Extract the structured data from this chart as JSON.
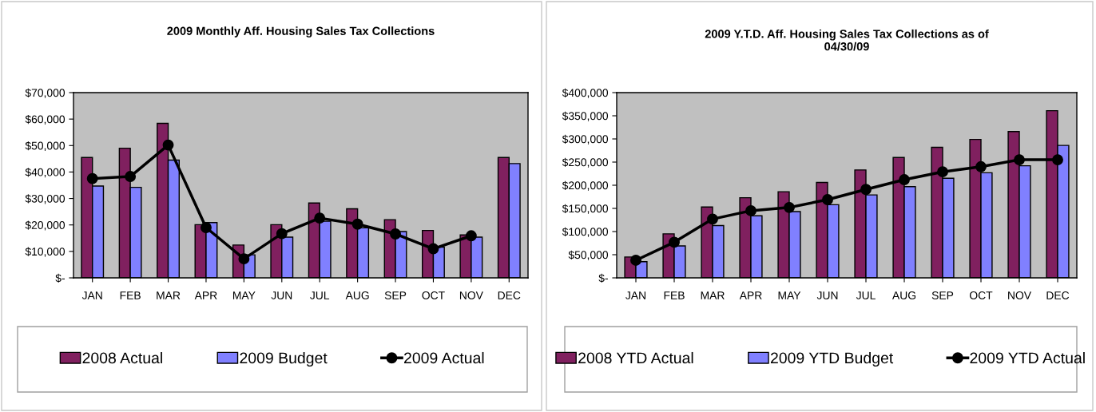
{
  "chart_data": [
    {
      "type": "bar",
      "title": "2009 Monthly Aff. Housing Sales Tax Collections",
      "categories": [
        "JAN",
        "FEB",
        "MAR",
        "APR",
        "MAY",
        "JUN",
        "JUL",
        "AUG",
        "SEP",
        "OCT",
        "NOV",
        "DEC"
      ],
      "series": [
        {
          "name": "2008 Actual",
          "color": "#80205f",
          "values": [
            45500,
            49000,
            58400,
            20100,
            12400,
            20100,
            28300,
            26100,
            22000,
            17900,
            16200,
            45500
          ]
        },
        {
          "name": "2009 Budget",
          "color": "#8080ff",
          "values": [
            34700,
            34200,
            44500,
            20900,
            8700,
            15400,
            21400,
            18900,
            17500,
            11600,
            15400,
            43200
          ]
        },
        {
          "name": "2009 Actual",
          "type": "line",
          "color": "#000000",
          "marker": "circle",
          "values": [
            37500,
            38300,
            50200,
            19000,
            7200,
            16700,
            22600,
            20300,
            16600,
            11000,
            15900,
            null
          ]
        }
      ],
      "ylim": [
        0,
        70000
      ],
      "yticks": [
        {
          "value": 0,
          "label": "$-"
        },
        {
          "value": 10000,
          "label": "$10,000"
        },
        {
          "value": 20000,
          "label": "$20,000"
        },
        {
          "value": 30000,
          "label": "$30,000"
        },
        {
          "value": 40000,
          "label": "$40,000"
        },
        {
          "value": 50000,
          "label": "$50,000"
        },
        {
          "value": 60000,
          "label": "$60,000"
        },
        {
          "value": 70000,
          "label": "$70,000"
        }
      ],
      "grid": false,
      "legend": "bottom"
    },
    {
      "type": "bar",
      "title": "2009 Y.T.D. Aff. Housing Sales Tax Collections as of\n04/30/09",
      "categories": [
        "JAN",
        "FEB",
        "MAR",
        "APR",
        "MAY",
        "JUN",
        "JUL",
        "AUG",
        "SEP",
        "OCT",
        "NOV",
        "DEC"
      ],
      "series": [
        {
          "name": "2008 YTD Actual",
          "color": "#80205f",
          "values": [
            45000,
            95000,
            153000,
            173000,
            186000,
            206000,
            233000,
            260000,
            282000,
            299000,
            316000,
            361000
          ]
        },
        {
          "name": "2009 YTD Budget",
          "color": "#8080ff",
          "values": [
            35000,
            69000,
            113000,
            134000,
            143000,
            158000,
            179000,
            197000,
            215000,
            227000,
            242000,
            286000
          ]
        },
        {
          "name": "2009 YTD Actual",
          "type": "line",
          "color": "#000000",
          "marker": "circle",
          "values": [
            38000,
            77000,
            127000,
            145000,
            152000,
            169000,
            191000,
            212000,
            229000,
            240000,
            255000,
            255000
          ]
        }
      ],
      "ylim": [
        0,
        400000
      ],
      "yticks": [
        {
          "value": 0,
          "label": "$-"
        },
        {
          "value": 50000,
          "label": "$50,000"
        },
        {
          "value": 100000,
          "label": "$100,000"
        },
        {
          "value": 150000,
          "label": "$150,000"
        },
        {
          "value": 200000,
          "label": "$200,000"
        },
        {
          "value": 250000,
          "label": "$250,000"
        },
        {
          "value": 300000,
          "label": "$300,000"
        },
        {
          "value": 350000,
          "label": "$350,000"
        },
        {
          "value": 400000,
          "label": "$400,000"
        }
      ],
      "grid": false,
      "legend": "bottom"
    }
  ]
}
